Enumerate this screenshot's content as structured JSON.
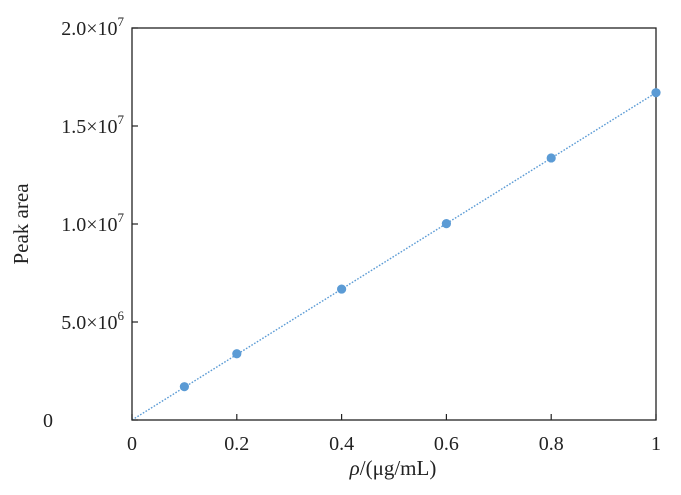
{
  "chart_data": {
    "type": "scatter",
    "xlabel": "ρ/(μg/mL)",
    "ylabel": "Peak area",
    "xlim": [
      0,
      1
    ],
    "ylim": [
      0,
      20000000
    ],
    "grid": false,
    "x_ticks": [
      {
        "value": 0,
        "label": "0"
      },
      {
        "value": 0.2,
        "label": "0.2"
      },
      {
        "value": 0.4,
        "label": "0.4"
      },
      {
        "value": 0.6,
        "label": "0.6"
      },
      {
        "value": 0.8,
        "label": "0.8"
      },
      {
        "value": 1,
        "label": "1"
      }
    ],
    "y_ticks": [
      {
        "value": 0,
        "mantissa": "0",
        "exponent": ""
      },
      {
        "value": 5000000,
        "mantissa": "5.0×10",
        "exponent": "6"
      },
      {
        "value": 10000000,
        "mantissa": "1.0×10",
        "exponent": "7"
      },
      {
        "value": 15000000,
        "mantissa": "1.5×10",
        "exponent": "7"
      },
      {
        "value": 20000000,
        "mantissa": "2.0×10",
        "exponent": "7"
      }
    ],
    "series": [
      {
        "points": [
          {
            "x": 0.1,
            "y": 1700000
          },
          {
            "x": 0.2,
            "y": 3380000
          },
          {
            "x": 0.4,
            "y": 6680000
          },
          {
            "x": 0.6,
            "y": 10020000
          },
          {
            "x": 0.8,
            "y": 13370000
          },
          {
            "x": 1.0,
            "y": 16700000
          }
        ],
        "color": "#5b9bd5"
      }
    ],
    "trendline": {
      "style": "dotted",
      "color": "#5b9bd5",
      "from": {
        "x": 0,
        "y": 0
      },
      "to": {
        "x": 1.0,
        "y": 16700000
      }
    },
    "colors": {
      "axis": "#222222",
      "marker": "#5b9bd5"
    }
  }
}
